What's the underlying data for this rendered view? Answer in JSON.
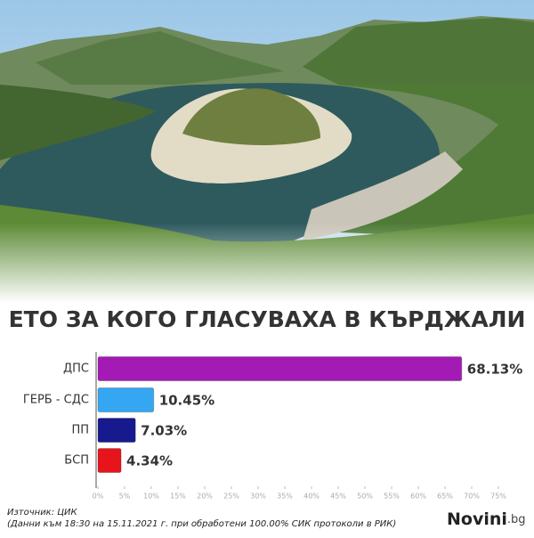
{
  "chart_data": {
    "type": "bar",
    "orientation": "horizontal",
    "title": "ЕТО ЗА КОГО ГЛАСУВАХА В КЪРДЖАЛИ",
    "categories": [
      "ДПС",
      "ГЕРБ - СДС",
      "ПП",
      "БСП"
    ],
    "values": [
      68.13,
      10.45,
      7.03,
      4.34
    ],
    "value_labels": [
      "68.13%",
      "10.45%",
      "7.03%",
      "4.34%"
    ],
    "colors": [
      "#a31ab5",
      "#35a6f2",
      "#171a8e",
      "#e8141b"
    ],
    "xlim": [
      0,
      75
    ],
    "xticks": [
      {
        "value": 0,
        "label": "0%"
      },
      {
        "value": 5,
        "label": "5%"
      },
      {
        "value": 10,
        "label": "10%"
      },
      {
        "value": 15,
        "label": "15%"
      },
      {
        "value": 20,
        "label": "20%"
      },
      {
        "value": 25,
        "label": "25%"
      },
      {
        "value": 30,
        "label": "30%"
      },
      {
        "value": 35,
        "label": "35%"
      },
      {
        "value": 40,
        "label": "40%"
      },
      {
        "value": 45,
        "label": "45%"
      },
      {
        "value": 50,
        "label": "50%"
      },
      {
        "value": 55,
        "label": "55%"
      },
      {
        "value": 60,
        "label": "60%"
      },
      {
        "value": 65,
        "label": "65%"
      },
      {
        "value": 70,
        "label": "70%"
      },
      {
        "value": 75,
        "label": "75%"
      }
    ],
    "source": "Източник: ЦИК",
    "note": "(Данни към 18:30 на 15.11.2021 г. при обработени 100.00% СИК протоколи в РИК)",
    "brand": "Novini",
    "brand_suffix": ".bg"
  }
}
